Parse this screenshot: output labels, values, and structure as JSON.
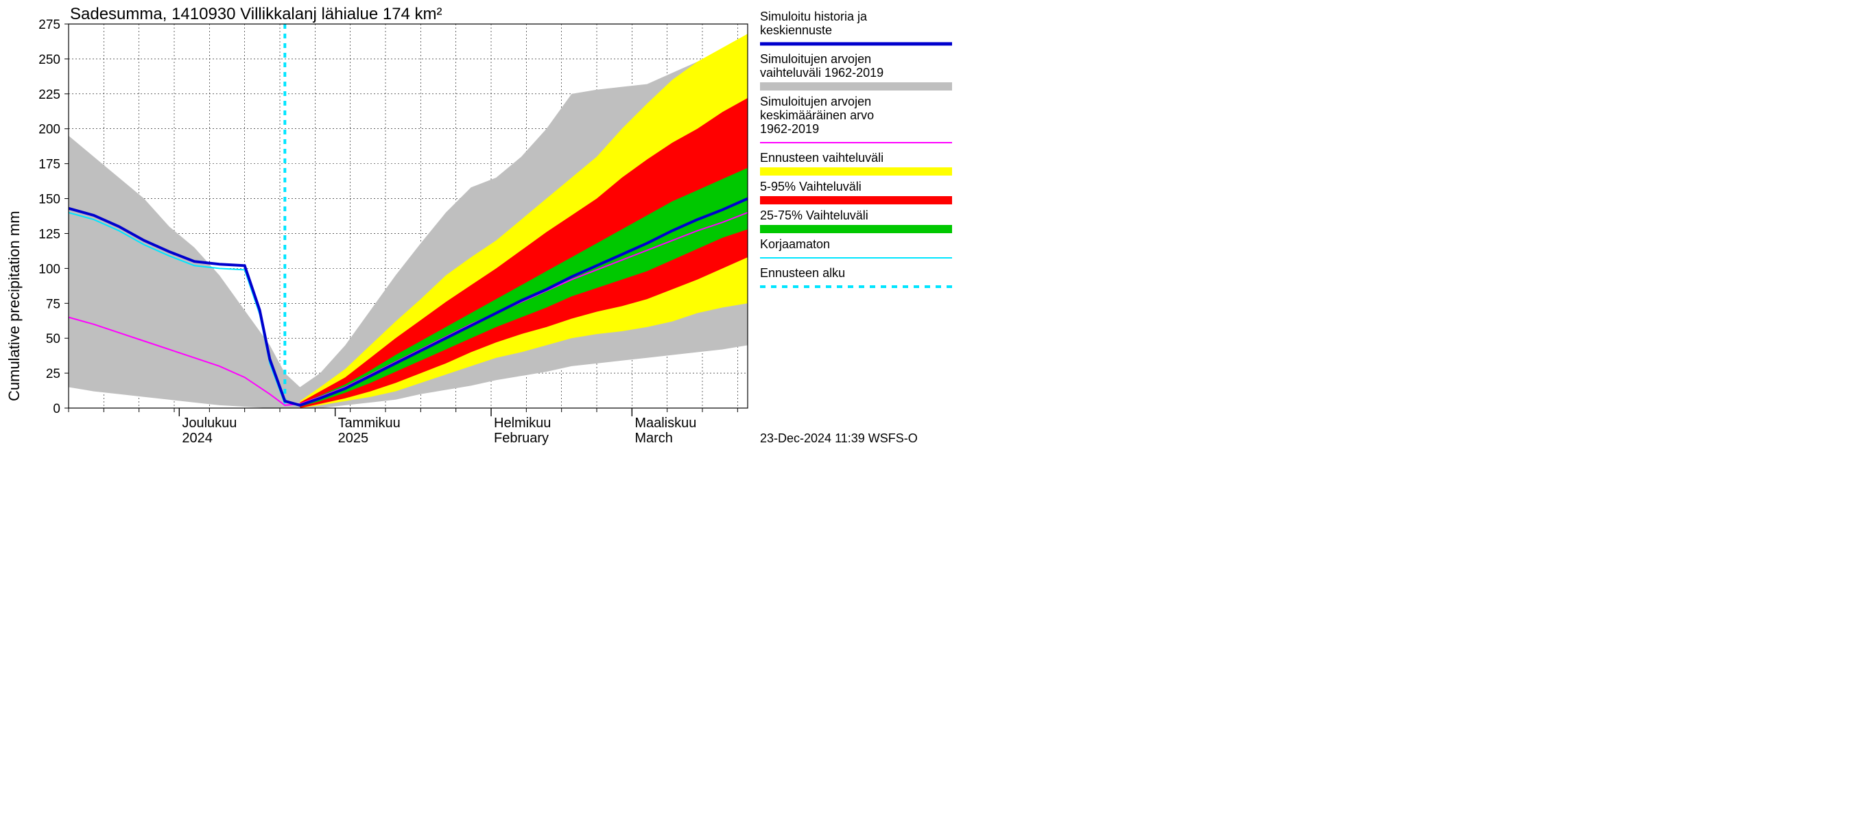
{
  "chart": {
    "type": "line-band",
    "title": "Sadesumma, 1410930 Villikkalanj lähialue 174 km²",
    "ylabel": "Cumulative precipitation   mm",
    "background_color": "#ffffff",
    "plot_border_color": "#000000",
    "grid_color": "#000000",
    "grid_dash": "2,3",
    "yaxis": {
      "min": 0,
      "max": 275,
      "ticks": [
        0,
        25,
        50,
        75,
        100,
        125,
        150,
        175,
        200,
        225,
        250,
        275
      ],
      "label_fontsize": 19
    },
    "xaxis": {
      "domain_days": 135,
      "minor_tick_step_days": 7,
      "months": [
        {
          "line1": "Joulukuu",
          "line2": "2024",
          "day": 22
        },
        {
          "line1": "Tammikuu",
          "line2": "2025",
          "day": 53
        },
        {
          "line1": "Helmikuu",
          "line2": "February",
          "day": 84
        },
        {
          "line1": "Maaliskuu",
          "line2": "March",
          "day": 112
        }
      ]
    },
    "forecast_start_day": 43,
    "colors": {
      "gray_band": "#bfbfbf",
      "yellow_band": "#ffff00",
      "red_band": "#ff0000",
      "green_band": "#00c800",
      "blue_line": "#0000cd",
      "magenta_line": "#ff00ff",
      "cyan_line": "#00e5ff",
      "cyan_dash": "#00e5ff"
    },
    "line_widths": {
      "blue": 4,
      "magenta": 2,
      "cyan": 2,
      "cyan_dash": 4
    },
    "gray_band": {
      "x": [
        0,
        5,
        10,
        15,
        20,
        25,
        30,
        35,
        40,
        43,
        46,
        50,
        55,
        60,
        65,
        70,
        75,
        80,
        85,
        90,
        95,
        100,
        105,
        110,
        115,
        120,
        125,
        130,
        135
      ],
      "hi": [
        195,
        180,
        165,
        150,
        130,
        115,
        95,
        70,
        45,
        25,
        15,
        25,
        45,
        70,
        95,
        118,
        140,
        158,
        165,
        180,
        200,
        225,
        228,
        230,
        232,
        240,
        248,
        254,
        260
      ],
      "lo": [
        15,
        12,
        10,
        8,
        6,
        4,
        2,
        1,
        0,
        0,
        0,
        0,
        2,
        4,
        6,
        10,
        13,
        16,
        20,
        23,
        26,
        30,
        32,
        34,
        36,
        38,
        40,
        42,
        45
      ]
    },
    "yellow_band": {
      "x": [
        46,
        50,
        55,
        60,
        65,
        70,
        75,
        80,
        85,
        90,
        95,
        100,
        105,
        110,
        115,
        120,
        125,
        130,
        135
      ],
      "hi": [
        5,
        15,
        28,
        45,
        62,
        78,
        95,
        108,
        120,
        135,
        150,
        165,
        180,
        200,
        218,
        235,
        248,
        258,
        268
      ],
      "lo": [
        0,
        2,
        5,
        8,
        12,
        18,
        24,
        30,
        36,
        40,
        45,
        50,
        53,
        55,
        58,
        62,
        68,
        72,
        75
      ]
    },
    "red_band": {
      "x": [
        46,
        50,
        55,
        60,
        65,
        70,
        75,
        80,
        85,
        90,
        95,
        100,
        105,
        110,
        115,
        120,
        125,
        130,
        135
      ],
      "hi": [
        4,
        12,
        22,
        36,
        50,
        63,
        76,
        88,
        100,
        113,
        126,
        138,
        150,
        165,
        178,
        190,
        200,
        212,
        222
      ],
      "lo": [
        0,
        3,
        7,
        12,
        18,
        25,
        32,
        40,
        47,
        53,
        58,
        64,
        69,
        73,
        78,
        85,
        92,
        100,
        108
      ]
    },
    "green_band": {
      "x": [
        46,
        50,
        55,
        60,
        65,
        70,
        75,
        80,
        85,
        90,
        95,
        100,
        105,
        110,
        115,
        120,
        125,
        130,
        135
      ],
      "hi": [
        3,
        9,
        17,
        27,
        38,
        48,
        58,
        68,
        78,
        88,
        98,
        108,
        118,
        128,
        138,
        148,
        156,
        164,
        172
      ],
      "lo": [
        1,
        5,
        11,
        18,
        26,
        34,
        42,
        50,
        58,
        65,
        72,
        80,
        86,
        92,
        98,
        106,
        114,
        122,
        128
      ]
    },
    "blue_line": {
      "x": [
        0,
        5,
        10,
        15,
        20,
        25,
        30,
        35,
        38,
        40,
        43,
        46,
        50,
        55,
        60,
        65,
        70,
        75,
        80,
        85,
        90,
        95,
        100,
        105,
        110,
        115,
        120,
        125,
        130,
        135
      ],
      "y": [
        143,
        138,
        130,
        120,
        112,
        105,
        103,
        102,
        70,
        35,
        5,
        2,
        7,
        14,
        23,
        32,
        41,
        50,
        59,
        68,
        77,
        85,
        94,
        102,
        110,
        118,
        127,
        135,
        142,
        150
      ]
    },
    "cyan_line": {
      "x": [
        0,
        5,
        10,
        15,
        20,
        25,
        30,
        35,
        38,
        40,
        43
      ],
      "y": [
        140,
        135,
        127,
        117,
        109,
        102,
        100,
        99,
        67,
        32,
        3
      ]
    },
    "magenta_line": {
      "x": [
        0,
        5,
        10,
        15,
        20,
        25,
        30,
        35,
        40,
        43,
        46,
        50,
        55,
        60,
        65,
        70,
        75,
        80,
        85,
        90,
        95,
        100,
        105,
        110,
        115,
        120,
        125,
        130,
        135
      ],
      "y": [
        65,
        60,
        54,
        48,
        42,
        36,
        30,
        22,
        10,
        2,
        3,
        8,
        15,
        24,
        33,
        42,
        51,
        60,
        68,
        76,
        84,
        92,
        99,
        106,
        113,
        120,
        127,
        133,
        140
      ]
    },
    "legend": [
      {
        "label_lines": [
          "Simuloitu historia ja",
          "keskiennuste"
        ],
        "swatch_type": "line",
        "color": "#0000cd",
        "width": 5
      },
      {
        "label_lines": [
          "Simuloitujen arvojen",
          "vaihteluväli 1962-2019"
        ],
        "swatch_type": "band",
        "color": "#bfbfbf"
      },
      {
        "label_lines": [
          "Simuloitujen arvojen",
          "keskimääräinen arvo",
          "  1962-2019"
        ],
        "swatch_type": "line",
        "color": "#ff00ff",
        "width": 2
      },
      {
        "label_lines": [
          "Ennusteen vaihteluväli"
        ],
        "swatch_type": "band",
        "color": "#ffff00"
      },
      {
        "label_lines": [
          "5-95% Vaihteluväli"
        ],
        "swatch_type": "band",
        "color": "#ff0000"
      },
      {
        "label_lines": [
          "25-75% Vaihteluväli"
        ],
        "swatch_type": "band",
        "color": "#00c800"
      },
      {
        "label_lines": [
          "Korjaamaton"
        ],
        "swatch_type": "line",
        "color": "#00e5ff",
        "width": 2
      },
      {
        "label_lines": [
          "Ennusteen alku"
        ],
        "swatch_type": "dash",
        "color": "#00e5ff",
        "width": 4
      }
    ],
    "footer": "23-Dec-2024 11:39 WSFS-O",
    "title_fontsize": 24,
    "legend_fontsize": 18
  }
}
